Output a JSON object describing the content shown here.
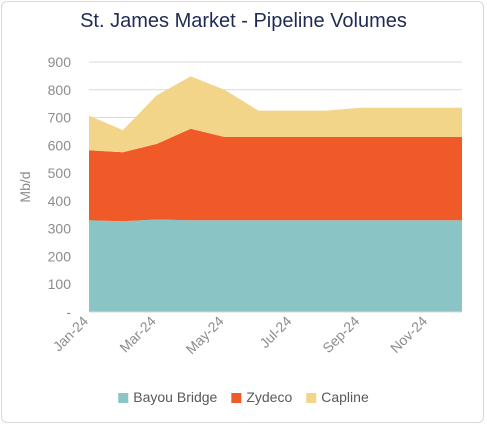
{
  "chart_data": {
    "type": "area",
    "stacked": true,
    "title": "St. James Market - Pipeline Volumes",
    "ylabel": "Mb/d",
    "xlabel": "",
    "ylim": [
      0,
      900
    ],
    "yticks": [
      0,
      100,
      200,
      300,
      400,
      500,
      600,
      700,
      800,
      900
    ],
    "ytick_labels": [
      "-",
      "100",
      "200",
      "300",
      "400",
      "500",
      "600",
      "700",
      "800",
      "900"
    ],
    "x": [
      "Jan-24",
      "Feb-24",
      "Mar-24",
      "Apr-24",
      "May-24",
      "Jun-24",
      "Jul-24",
      "Aug-24",
      "Sep-24",
      "Oct-24",
      "Nov-24",
      "Dec-24"
    ],
    "xtick_labels": [
      "Jan-24",
      "Mar-24",
      "May-24",
      "Jul-24",
      "Sep-24",
      "Nov-24"
    ],
    "series": [
      {
        "name": "Bayou Bridge",
        "color": "#8ac4c4",
        "values": [
          330,
          327,
          333,
          330,
          330,
          330,
          330,
          330,
          330,
          330,
          330,
          330
        ]
      },
      {
        "name": "Zydeco",
        "color": "#f05a28",
        "values": [
          252,
          248,
          272,
          330,
          300,
          300,
          300,
          300,
          300,
          300,
          300,
          300
        ]
      },
      {
        "name": "Capline",
        "color": "#f3d58a",
        "values": [
          125,
          80,
          175,
          188,
          170,
          95,
          95,
          95,
          105,
          105,
          105,
          105
        ]
      }
    ],
    "grid": "horizontal",
    "legend_position": "bottom"
  }
}
